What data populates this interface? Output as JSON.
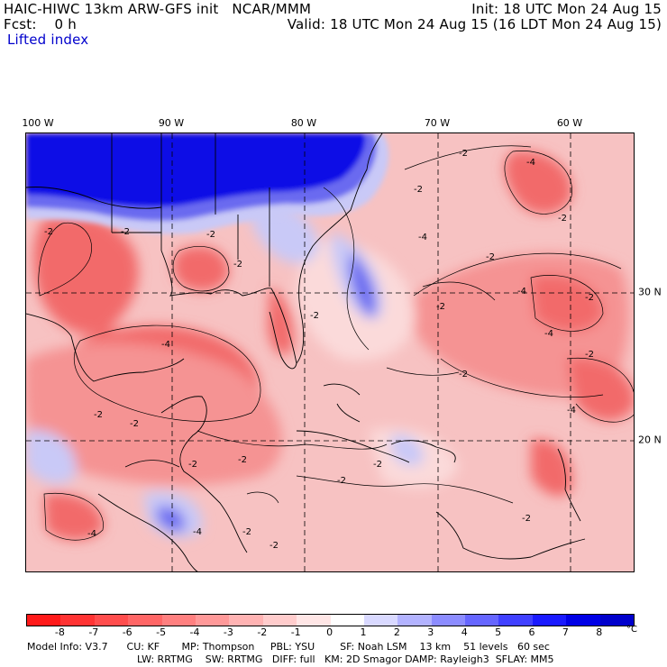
{
  "header": {
    "model_line": "HAIC-HIWC 13km ARW-GFS init   NCAR/MMM",
    "fcst_line": "Fcst:    0 h",
    "field_name": "Lifted index",
    "init_line": "Init: 18 UTC Mon 24 Aug 15",
    "valid_line": "Valid: 18 UTC Mon 24 Aug 15 (16 LDT Mon 24 Aug 15)"
  },
  "axes": {
    "longitude_labels": [
      "100 W",
      "90 W",
      "80 W",
      "70 W",
      "60 W"
    ],
    "latitude_labels": [
      "30 N",
      "20 N"
    ]
  },
  "contour_labels": [
    "-2",
    "-2",
    "-2",
    "-2",
    "-4",
    "-2",
    "-2",
    "-2",
    "-4",
    "-4",
    "-4",
    "-2",
    "-2",
    "-2",
    "-4",
    "-2",
    "-2",
    "-2",
    "-4",
    "-4",
    "-2",
    "-2",
    "-2",
    "-2",
    "-2",
    "-2",
    "-4",
    "-2",
    "-2",
    "-2"
  ],
  "colorbar": {
    "ticks": [
      "-8",
      "-7",
      "-6",
      "-5",
      "-4",
      "-3",
      "-2",
      "-1",
      "0",
      "1",
      "2",
      "3",
      "4",
      "5",
      "6",
      "7",
      "8"
    ],
    "unit": "°C",
    "colors": [
      "#ff1a1a",
      "#ff3333",
      "#ff4d4d",
      "#ff6666",
      "#ff8080",
      "#ff9999",
      "#ffb3b3",
      "#ffcccc",
      "#ffe6e6",
      "#ffffff",
      "#d9d9ff",
      "#b3b3ff",
      "#8c8cff",
      "#6666ff",
      "#4040ff",
      "#1a1aff",
      "#0000e6",
      "#0000cc"
    ]
  },
  "footer": {
    "line1": "Model Info: V3.7      CU: KF       MP: Thompson     PBL: YSU        SF: Noah LSM    13 km    51 levels   60 sec",
    "line2": "LW: RRTMG    SW: RRTMG   DIFF: full   KM: 2D Smagor DAMP: Rayleigh3  SFLAY: MM5"
  },
  "map_colors": {
    "background": "#f7c2c2",
    "strong_red": "#f26a6a",
    "mid_red": "#f59393",
    "light_pink": "#fbdada",
    "blue_dark": "#0a0ae6",
    "blue_mid": "#6a6af0",
    "blue_light": "#c9c9f7",
    "land_line": "#000000",
    "grid_line": "#000000"
  }
}
